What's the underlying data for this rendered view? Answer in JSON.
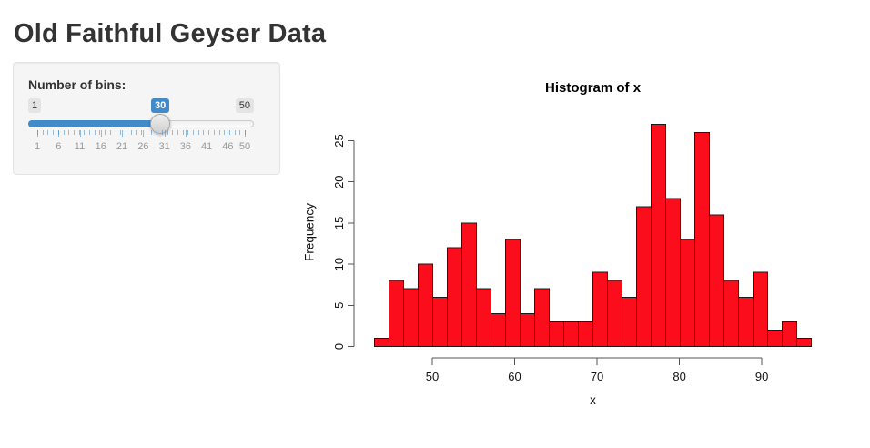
{
  "header": {
    "title": "Old Faithful Geyser Data"
  },
  "sidebar": {
    "bins_label": "Number of bins:",
    "slider": {
      "min": 1,
      "max": 50,
      "value": 30,
      "tick_labels": [
        1,
        6,
        11,
        16,
        21,
        26,
        31,
        36,
        41,
        46,
        50
      ],
      "accent_color": "#428bca"
    }
  },
  "chart_data": {
    "type": "bar",
    "title": "Histogram of x",
    "xlabel": "x",
    "ylabel": "Frequency",
    "bin_start": 43,
    "bin_end": 96,
    "bin_count": 30,
    "counts": [
      1,
      8,
      7,
      10,
      6,
      12,
      15,
      7,
      4,
      13,
      4,
      7,
      3,
      3,
      3,
      9,
      8,
      6,
      17,
      27,
      18,
      13,
      26,
      16,
      8,
      6,
      9,
      2,
      3,
      1
    ],
    "x_ticks": [
      50,
      60,
      70,
      80,
      90
    ],
    "y_ticks": [
      0,
      5,
      10,
      15,
      20,
      25
    ],
    "ylim": [
      0,
      27
    ],
    "grid": false,
    "legend": "none",
    "bar_color": "#fb0d1c",
    "bar_border_color": "#1a1a1a",
    "axis_color": "#555555"
  }
}
